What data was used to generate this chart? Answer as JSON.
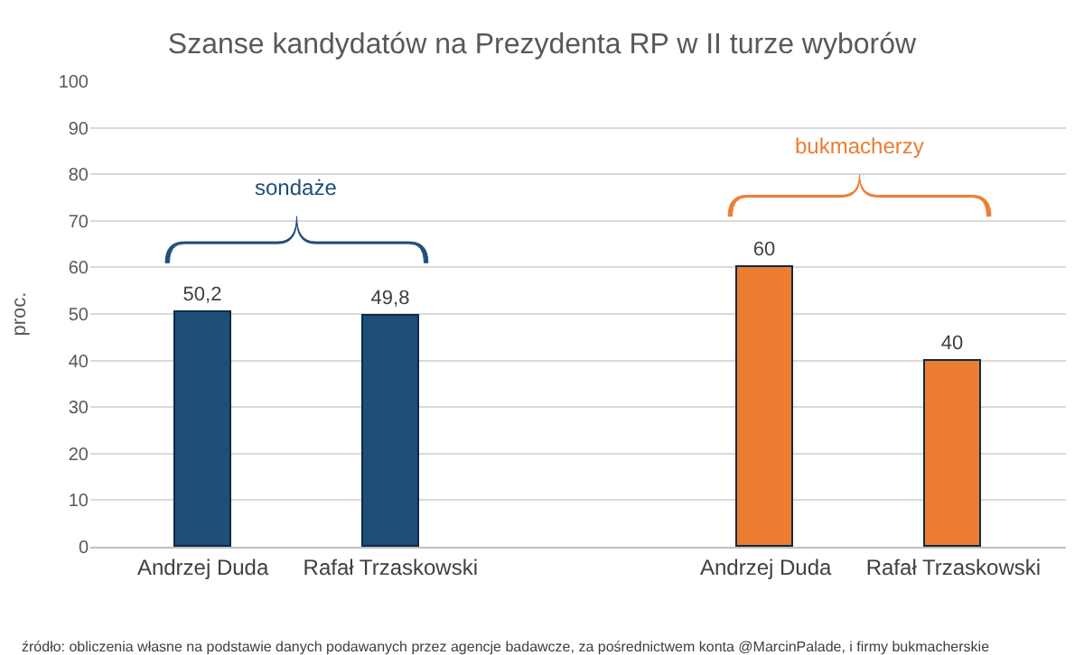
{
  "chart_data": {
    "type": "bar",
    "title": "Szanse kandydatów na Prezydenta RP w II turze wyborów",
    "categories": [
      "Andrzej Duda",
      "Rafał Trzaskowski",
      null,
      "Andrzej Duda",
      "Rafał Trzaskowski"
    ],
    "values": [
      50.2,
      49.8,
      null,
      60,
      40
    ],
    "colors": [
      "#1f4e79",
      "#1f4e79",
      "#ffffff",
      "#ed7d31",
      "#ed7d31"
    ],
    "value_labels": [
      "50,2",
      "49,8",
      null,
      "60",
      "40"
    ],
    "ylabel": "proc.",
    "ylim": [
      0,
      100
    ],
    "yticks": [
      0,
      10,
      20,
      30,
      40,
      50,
      60,
      70,
      80,
      90,
      100
    ],
    "grid": "y",
    "annotations": [
      "sondaże",
      "bukmacherzy",
      "źródło: obliczenia własne na podstawie danych podawanych przez agencje badawcze, za pośrednictwem konta @MarcinPalade, i firmy bukmacherskie"
    ]
  }
}
